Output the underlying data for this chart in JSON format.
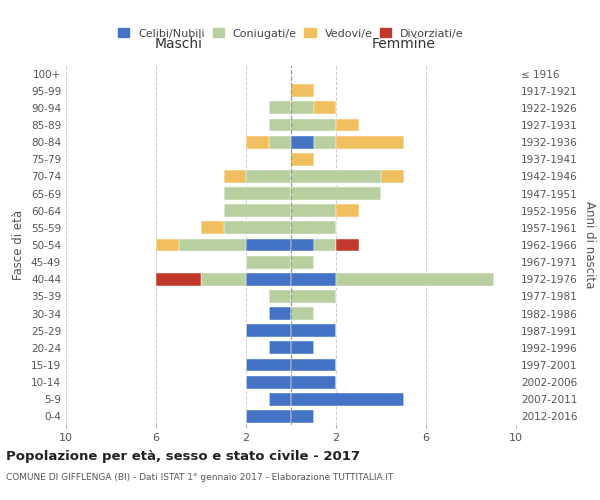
{
  "age_groups_bottom_to_top": [
    "0-4",
    "5-9",
    "10-14",
    "15-19",
    "20-24",
    "25-29",
    "30-34",
    "35-39",
    "40-44",
    "45-49",
    "50-54",
    "55-59",
    "60-64",
    "65-69",
    "70-74",
    "75-79",
    "80-84",
    "85-89",
    "90-94",
    "95-99",
    "100+"
  ],
  "birth_years_bottom_to_top": [
    "2012-2016",
    "2007-2011",
    "2002-2006",
    "1997-2001",
    "1992-1996",
    "1987-1991",
    "1982-1986",
    "1977-1981",
    "1972-1976",
    "1967-1971",
    "1962-1966",
    "1957-1961",
    "1952-1956",
    "1947-1951",
    "1942-1946",
    "1937-1941",
    "1932-1936",
    "1927-1931",
    "1922-1926",
    "1917-1921",
    "≤ 1916"
  ],
  "maschi": {
    "celibe": [
      2,
      1,
      2,
      2,
      1,
      2,
      1,
      0,
      2,
      0,
      2,
      0,
      0,
      0,
      0,
      0,
      0,
      0,
      0,
      0,
      0
    ],
    "coniugato": [
      0,
      0,
      0,
      0,
      0,
      0,
      0,
      1,
      2,
      2,
      3,
      3,
      3,
      3,
      2,
      0,
      1,
      1,
      1,
      0,
      0
    ],
    "vedovo": [
      0,
      0,
      0,
      0,
      0,
      0,
      0,
      0,
      0,
      0,
      1,
      1,
      0,
      0,
      1,
      0,
      1,
      0,
      0,
      0,
      0
    ],
    "divorziato": [
      0,
      0,
      0,
      0,
      0,
      0,
      0,
      0,
      2,
      0,
      0,
      0,
      0,
      0,
      0,
      0,
      0,
      0,
      0,
      0,
      0
    ]
  },
  "femmine": {
    "nubile": [
      1,
      5,
      2,
      2,
      1,
      2,
      0,
      0,
      2,
      0,
      1,
      0,
      0,
      0,
      0,
      0,
      1,
      0,
      0,
      0,
      0
    ],
    "coniugata": [
      0,
      0,
      0,
      0,
      0,
      0,
      1,
      2,
      7,
      1,
      1,
      2,
      2,
      4,
      4,
      0,
      1,
      2,
      1,
      0,
      0
    ],
    "vedova": [
      0,
      0,
      0,
      0,
      0,
      0,
      0,
      0,
      0,
      0,
      0,
      0,
      1,
      0,
      1,
      1,
      3,
      1,
      1,
      1,
      0
    ],
    "divorziata": [
      0,
      0,
      0,
      0,
      0,
      0,
      0,
      0,
      0,
      0,
      1,
      0,
      0,
      0,
      0,
      0,
      0,
      0,
      0,
      0,
      0
    ]
  },
  "colors": {
    "celibe": "#4472c4",
    "coniugato": "#b8cfa0",
    "vedovo": "#f0c060",
    "divorziato": "#c0392b"
  },
  "xlim": 10,
  "title": "Popolazione per età, sesso e stato civile - 2017",
  "subtitle": "COMUNE DI GIFFLENGA (BI) - Dati ISTAT 1° gennaio 2017 - Elaborazione TUTTITALIA.IT",
  "label_maschi": "Maschi",
  "label_femmine": "Femmine",
  "ylabel_left": "Fasce di età",
  "ylabel_right": "Anni di nascita",
  "legend_labels": [
    "Celibi/Nubili",
    "Coniugati/e",
    "Vedovi/e",
    "Divorziati/e"
  ],
  "bg_color": "#ffffff",
  "grid_color": "#cccccc",
  "text_color": "#555555",
  "title_color": "#222222"
}
